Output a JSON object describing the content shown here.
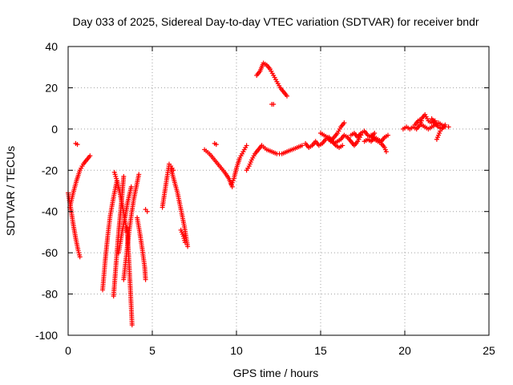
{
  "chart_data": {
    "type": "scatter",
    "title": "Day 033 of 2025, Sidereal Day-to-day VTEC variation (SDTVAR) for receiver bndr",
    "xlabel": "GPS time / hours",
    "ylabel": "SDTVAR / TECUs",
    "xlim": [
      0,
      25
    ],
    "ylim": [
      -100,
      40
    ],
    "xticks": [
      "0",
      "5",
      "10",
      "15",
      "20",
      "25"
    ],
    "yticks": [
      "40",
      "20",
      "0",
      "-20",
      "-40",
      "-60",
      "-80",
      "-100"
    ],
    "grid": true,
    "marker": "plus",
    "color": "#ff0000",
    "tracks": [
      {
        "x": [
          0.0,
          0.15,
          0.3,
          0.45,
          0.6,
          0.7
        ],
        "y": [
          -31,
          -38,
          -46,
          -53,
          -59,
          -62
        ]
      },
      {
        "x": [
          0.1,
          0.3,
          0.5,
          0.7,
          0.9,
          1.1,
          1.3
        ],
        "y": [
          -38,
          -31,
          -25,
          -20,
          -17,
          -15,
          -13
        ]
      },
      {
        "x": [
          0.45,
          0.55
        ],
        "y": [
          -7,
          -7.5
        ]
      },
      {
        "x": [
          2.05,
          2.2,
          2.35,
          2.5,
          2.7,
          2.9
        ],
        "y": [
          -78,
          -64,
          -52,
          -42,
          -33,
          -25
        ]
      },
      {
        "x": [
          2.7,
          2.85,
          3.0,
          3.15,
          3.3
        ],
        "y": [
          -81,
          -65,
          -50,
          -37,
          -23
        ]
      },
      {
        "x": [
          2.75,
          2.9,
          3.05,
          3.2,
          3.35,
          3.5
        ],
        "y": [
          -21,
          -25,
          -30,
          -36,
          -43,
          -50
        ]
      },
      {
        "x": [
          3.0,
          3.2,
          3.4,
          3.55,
          3.75
        ],
        "y": [
          -60,
          -50,
          -42,
          -35,
          -28
        ]
      },
      {
        "x": [
          3.3,
          3.45,
          3.6,
          3.75,
          3.9,
          4.05,
          4.2
        ],
        "y": [
          -73,
          -62,
          -51,
          -42,
          -34,
          -28,
          -22
        ]
      },
      {
        "x": [
          3.5,
          3.6,
          3.7,
          3.8
        ],
        "y": [
          -48,
          -62,
          -78,
          -95
        ]
      },
      {
        "x": [
          4.1,
          4.25,
          4.4,
          4.55,
          4.6
        ],
        "y": [
          -43,
          -50,
          -58,
          -67,
          -73
        ]
      },
      {
        "x": [
          4.6,
          4.7
        ],
        "y": [
          -39,
          -40
        ]
      },
      {
        "x": [
          5.6,
          5.75,
          5.9,
          6.0,
          6.1,
          6.25
        ],
        "y": [
          -38,
          -30,
          -22,
          -17,
          -18,
          -20
        ]
      },
      {
        "x": [
          6.1,
          6.3,
          6.5,
          6.7,
          6.9,
          7.1
        ],
        "y": [
          -19,
          -25,
          -31,
          -39,
          -47,
          -57
        ]
      },
      {
        "x": [
          6.7,
          6.85,
          6.95
        ],
        "y": [
          -49,
          -52,
          -55
        ]
      },
      {
        "x": [
          8.1,
          8.4,
          8.7,
          9.0,
          9.3,
          9.55,
          9.75
        ],
        "y": [
          -10,
          -12,
          -15,
          -18,
          -21,
          -24,
          -28
        ]
      },
      {
        "x": [
          8.7,
          8.8
        ],
        "y": [
          -7,
          -7.5
        ]
      },
      {
        "x": [
          9.7,
          9.85,
          10.0,
          10.2,
          10.4,
          10.6
        ],
        "y": [
          -27,
          -24,
          -19,
          -14,
          -11,
          -8
        ]
      },
      {
        "x": [
          10.6,
          10.75,
          10.9,
          11.1,
          11.3,
          11.5
        ],
        "y": [
          -20,
          -18,
          -15,
          -12,
          -10,
          -8
        ]
      },
      {
        "x": [
          11.5,
          11.8,
          12.1,
          12.4,
          12.7,
          13.0,
          13.3,
          13.6,
          13.9
        ],
        "y": [
          -8,
          -10,
          -11,
          -12,
          -12,
          -11,
          -10,
          -9,
          -8
        ]
      },
      {
        "x": [
          11.2,
          11.4,
          11.6,
          11.8,
          12.0,
          12.2,
          12.4,
          12.6,
          12.8,
          13.0
        ],
        "y": [
          26,
          28,
          32,
          31,
          29,
          26,
          23,
          20,
          18,
          16
        ]
      },
      {
        "x": [
          12.1,
          12.2
        ],
        "y": [
          12,
          12
        ]
      },
      {
        "x": [
          14.1,
          14.3,
          14.5,
          14.7,
          14.9,
          15.1,
          15.3,
          15.5,
          15.7,
          15.9,
          16.1,
          16.3
        ],
        "y": [
          -7,
          -9,
          -8,
          -6,
          -8,
          -7,
          -5,
          -4,
          -6,
          -8,
          -9,
          -8
        ]
      },
      {
        "x": [
          15.0,
          15.2,
          15.4,
          15.6,
          15.8,
          16.0,
          16.2,
          16.4
        ],
        "y": [
          -2,
          -3,
          -4,
          -6,
          -4,
          -2,
          1,
          3
        ]
      },
      {
        "x": [
          15.8,
          16.0,
          16.2,
          16.4,
          16.6,
          16.8,
          17.0,
          17.2,
          17.4
        ],
        "y": [
          -7,
          -6,
          -5,
          -3,
          -4,
          -6,
          -8,
          -6,
          -3
        ]
      },
      {
        "x": [
          16.8,
          17.0,
          17.2,
          17.4,
          17.6,
          17.8,
          18.0,
          18.2
        ],
        "y": [
          -3,
          -2,
          -4,
          -2,
          -1,
          -3,
          -4,
          -2
        ]
      },
      {
        "x": [
          17.6,
          17.8,
          18.0,
          18.2,
          18.4,
          18.6,
          18.8,
          19.0
        ],
        "y": [
          -6,
          -5,
          -6,
          -4,
          -5,
          -6,
          -4,
          -3
        ]
      },
      {
        "x": [
          18.0,
          18.2,
          18.4,
          18.6,
          18.8,
          18.9
        ],
        "y": [
          -3,
          -5,
          -6,
          -7,
          -9,
          -11
        ]
      },
      {
        "x": [
          19.9,
          20.1,
          20.3,
          20.5,
          20.7,
          20.9,
          21.0
        ],
        "y": [
          0,
          1,
          0,
          1,
          0,
          2,
          4
        ]
      },
      {
        "x": [
          20.6,
          20.8,
          21.0,
          21.2,
          21.4,
          21.6,
          21.8
        ],
        "y": [
          2,
          4,
          5,
          7,
          4,
          3,
          4
        ]
      },
      {
        "x": [
          21.0,
          21.2,
          21.4,
          21.6,
          21.8,
          22.0,
          22.2,
          22.4,
          22.6
        ],
        "y": [
          2,
          1,
          0,
          1,
          2,
          3,
          2,
          1,
          1
        ]
      },
      {
        "x": [
          21.6,
          21.8,
          22.0,
          22.2,
          22.4
        ],
        "y": [
          5,
          3,
          1,
          0,
          2
        ]
      },
      {
        "x": [
          21.9,
          22.0,
          22.1,
          22.2
        ],
        "y": [
          -5,
          -3,
          -1,
          0
        ]
      }
    ]
  }
}
